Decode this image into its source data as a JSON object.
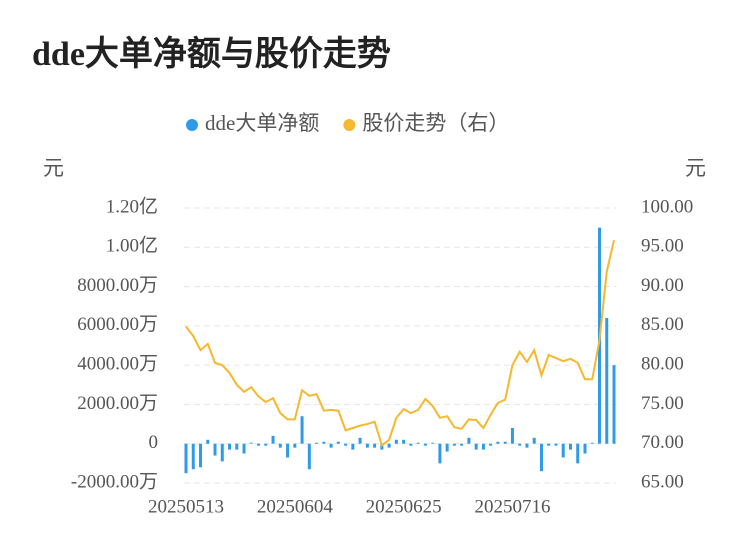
{
  "chart_data": {
    "type": "bar",
    "title": "dde大单净额与股价走势",
    "ylabel": "元",
    "y2label": "元",
    "legend": "top",
    "grid": true,
    "categories": [
      "20250513",
      null,
      null,
      null,
      null,
      null,
      null,
      null,
      null,
      null,
      null,
      null,
      null,
      null,
      null,
      "20250604",
      null,
      null,
      null,
      null,
      null,
      null,
      null,
      null,
      null,
      null,
      null,
      null,
      null,
      null,
      "20250625",
      null,
      null,
      null,
      null,
      null,
      null,
      null,
      null,
      null,
      null,
      null,
      null,
      null,
      null,
      "20250716",
      null,
      null,
      null,
      null,
      null,
      null,
      null,
      null,
      null,
      null,
      null,
      null,
      null,
      null
    ],
    "series": [
      {
        "name": "dde大单净额",
        "type": "bar",
        "color": "#2f9be6",
        "values": [
          -1500,
          -1300,
          -1200,
          200,
          -600,
          -900,
          -300,
          -300,
          -500,
          50,
          -100,
          -100,
          400,
          -200,
          -700,
          -200,
          1400,
          -1300,
          50,
          100,
          -200,
          100,
          -100,
          -300,
          300,
          -200,
          -200,
          -300,
          -200,
          200,
          200,
          -100,
          50,
          -100,
          50,
          -1000,
          -400,
          -100,
          -100,
          300,
          -300,
          -300,
          -100,
          100,
          100,
          800,
          -100,
          -200,
          300,
          -1400,
          -100,
          -100,
          -700,
          -300,
          -1000,
          -500,
          50,
          11000,
          6400,
          4000
        ]
      },
      {
        "name": "股价走势（右）",
        "type": "line",
        "color": "#f5b82e",
        "axis": "y2",
        "values": [
          84.9,
          83.7,
          81.9,
          82.7,
          80.3,
          80.0,
          79.0,
          77.5,
          76.6,
          77.2,
          76.0,
          75.3,
          75.8,
          73.9,
          73.1,
          73.1,
          76.8,
          76.1,
          76.3,
          74.2,
          74.3,
          74.2,
          71.7,
          72.0,
          72.3,
          72.5,
          72.8,
          69.8,
          70.5,
          73.3,
          74.4,
          73.9,
          74.3,
          75.7,
          74.8,
          73.3,
          73.5,
          72.1,
          71.9,
          73.1,
          73.0,
          72.0,
          73.7,
          75.2,
          75.6,
          80.0,
          81.7,
          80.4,
          81.9,
          78.7,
          81.3,
          80.9,
          80.5,
          80.8,
          80.3,
          78.2,
          78.2,
          83.2,
          91.9,
          95.9
        ]
      }
    ],
    "ylim": [
      -2000,
      12000
    ],
    "yticks": [
      {
        "value": 12000,
        "label": "1.20亿"
      },
      {
        "value": 10000,
        "label": "1.00亿"
      },
      {
        "value": 8000,
        "label": "8000.00万"
      },
      {
        "value": 6000,
        "label": "6000.00万"
      },
      {
        "value": 4000,
        "label": "4000.00万"
      },
      {
        "value": 2000,
        "label": "2000.00万"
      },
      0,
      {
        "value": -2000,
        "label": "-2000.00万"
      }
    ],
    "y2lim": [
      65,
      100
    ],
    "y2ticks": [
      {
        "value": 100,
        "label": "100.00"
      },
      {
        "value": 95,
        "label": "95.00"
      },
      {
        "value": 90,
        "label": "90.00"
      },
      {
        "value": 85,
        "label": "85.00"
      },
      {
        "value": 80,
        "label": "80.00"
      },
      {
        "value": 75,
        "label": "75.00"
      },
      {
        "value": 70,
        "label": "70.00"
      },
      {
        "value": 65,
        "label": "65.00"
      }
    ]
  }
}
